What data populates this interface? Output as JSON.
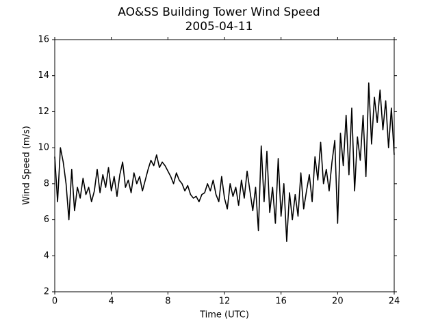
{
  "chart_data": {
    "type": "line",
    "title": "AO&SS Building Tower Wind Speed",
    "subtitle": "2005-04-11",
    "x_label": "Time (UTC)",
    "y_label": "Wind Speed (m/s)",
    "xlim": [
      0,
      24
    ],
    "xticks": [
      0,
      4,
      8,
      12,
      16,
      20,
      24
    ],
    "ylim": [
      2,
      16
    ],
    "yticks": [
      2,
      4,
      6,
      8,
      10,
      12,
      14,
      16
    ],
    "x": [
      0,
      0.2,
      0.4,
      0.6,
      0.8,
      1.0,
      1.2,
      1.4,
      1.6,
      1.8,
      2.0,
      2.2,
      2.4,
      2.6,
      2.8,
      3.0,
      3.2,
      3.4,
      3.6,
      3.8,
      4.0,
      4.2,
      4.4,
      4.6,
      4.8,
      5.0,
      5.2,
      5.4,
      5.6,
      5.8,
      6.0,
      6.2,
      6.4,
      6.6,
      6.8,
      7.0,
      7.2,
      7.4,
      7.6,
      7.8,
      8.0,
      8.2,
      8.4,
      8.6,
      8.8,
      9.0,
      9.2,
      9.4,
      9.6,
      9.8,
      10.0,
      10.2,
      10.4,
      10.6,
      10.8,
      11.0,
      11.2,
      11.4,
      11.6,
      11.8,
      12.0,
      12.2,
      12.4,
      12.6,
      12.8,
      13.0,
      13.2,
      13.4,
      13.6,
      13.8,
      14.0,
      14.2,
      14.4,
      14.6,
      14.8,
      15.0,
      15.2,
      15.4,
      15.6,
      15.8,
      16.0,
      16.2,
      16.4,
      16.6,
      16.8,
      17.0,
      17.2,
      17.4,
      17.6,
      17.8,
      18.0,
      18.2,
      18.4,
      18.6,
      18.8,
      19.0,
      19.2,
      19.4,
      19.6,
      19.8,
      20.0,
      20.2,
      20.4,
      20.6,
      20.8,
      21.0,
      21.2,
      21.4,
      21.6,
      21.8,
      22.0,
      22.2,
      22.4,
      22.6,
      22.8,
      23.0,
      23.2,
      23.4,
      23.6,
      23.8,
      24.0
    ],
    "series": [
      {
        "color": "#000000",
        "values": [
          9.5,
          7.0,
          10.0,
          9.2,
          8.0,
          6.0,
          8.8,
          6.5,
          7.8,
          7.2,
          8.3,
          7.4,
          7.8,
          7.0,
          7.6,
          8.8,
          7.5,
          8.5,
          7.8,
          8.9,
          7.6,
          8.4,
          7.3,
          8.5,
          9.2,
          7.8,
          8.2,
          7.5,
          8.6,
          8.0,
          8.4,
          7.6,
          8.2,
          8.8,
          9.3,
          9.0,
          9.6,
          8.9,
          9.2,
          9.0,
          8.7,
          8.4,
          8.0,
          8.6,
          8.2,
          8.0,
          7.6,
          7.9,
          7.4,
          7.2,
          7.3,
          7.0,
          7.4,
          7.5,
          8.0,
          7.6,
          8.2,
          7.4,
          7.0,
          8.4,
          7.2,
          6.6,
          8.0,
          7.3,
          7.8,
          6.8,
          8.2,
          7.2,
          8.7,
          7.6,
          6.5,
          7.8,
          5.4,
          10.1,
          7.0,
          9.8,
          6.4,
          7.8,
          5.8,
          9.4,
          6.2,
          8.0,
          4.8,
          7.5,
          6.0,
          7.4,
          6.2,
          8.6,
          6.6,
          7.6,
          8.5,
          7.0,
          9.5,
          8.2,
          10.3,
          8.0,
          8.8,
          7.6,
          9.2,
          10.4,
          5.8,
          10.8,
          9.0,
          11.8,
          8.5,
          12.2,
          7.6,
          10.6,
          9.3,
          11.8,
          8.4,
          13.6,
          10.2,
          12.8,
          11.4,
          13.2,
          11.0,
          12.6,
          10.0,
          12.2,
          9.6
        ]
      }
    ]
  }
}
